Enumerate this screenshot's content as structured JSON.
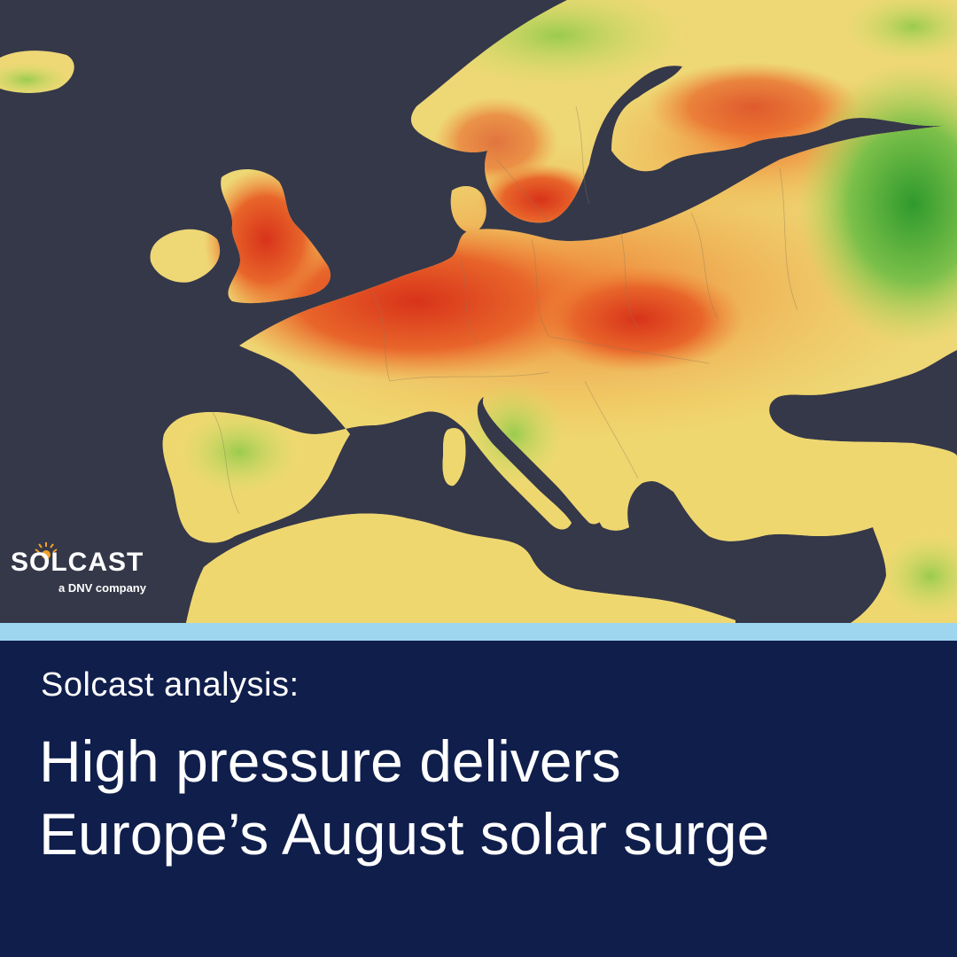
{
  "map": {
    "subject": "Europe solar irradiance anomaly, August",
    "colors": {
      "sea": "#353849",
      "high": "#d93a1a",
      "mid_high": "#ef7a30",
      "mid": "#f2b24c",
      "neutral": "#eede7a",
      "low": "#a8d356",
      "very_low": "#3a9b2c"
    }
  },
  "logo": {
    "brand": "SOLCAST",
    "tagline": "a DNV company",
    "icon": "sun-icon"
  },
  "caption": {
    "kicker": "Solcast analysis:",
    "headline_line1": "High pressure delivers",
    "headline_line2": "Europe’s August solar surge"
  },
  "colors": {
    "panel_bg": "#0f1e4b",
    "stripe": "#9fd6ef",
    "text": "#ffffff"
  }
}
